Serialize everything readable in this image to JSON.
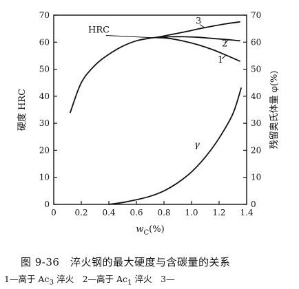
{
  "chart_data": {
    "type": "line",
    "xlabel": "w_C(%)",
    "xlabel_main": "w",
    "xlabel_sub": "C",
    "xlabel_unit": "(%)",
    "ylabel": "硬度 HRC",
    "y2label": "残留奥氏体量 φ(%)",
    "xlim": [
      0,
      1.4
    ],
    "ylim": [
      0,
      70
    ],
    "y2lim": [
      0,
      70
    ],
    "xticks": [
      "0",
      "0.2",
      "0.4",
      "0.6",
      "0.8",
      "1.0",
      "1.2",
      "1.4"
    ],
    "xtick_values": [
      0,
      0.2,
      0.4,
      0.6,
      0.8,
      1.0,
      1.2,
      1.4
    ],
    "yticks": [
      "0",
      "10",
      "20",
      "30",
      "40",
      "50",
      "60",
      "70"
    ],
    "ytick_values": [
      0,
      10,
      20,
      30,
      40,
      50,
      60,
      70
    ],
    "y2ticks": [
      "0",
      "10",
      "20",
      "30",
      "40",
      "50",
      "60",
      "70"
    ],
    "grid": false,
    "series": [
      {
        "name": "HRC",
        "axis": "left",
        "x": [
          0.12,
          0.2,
          0.3,
          0.4,
          0.5,
          0.6,
          0.7,
          0.75
        ],
        "y": [
          34,
          45,
          51.5,
          55.5,
          58.5,
          60.5,
          61.5,
          61.8
        ]
      },
      {
        "name": "1",
        "axis": "left",
        "x": [
          0.75,
          0.85,
          0.95,
          1.05,
          1.15,
          1.25,
          1.35
        ],
        "y": [
          61.8,
          61.3,
          60.3,
          59.0,
          57.3,
          55.2,
          53.0
        ]
      },
      {
        "name": "2",
        "axis": "left",
        "x": [
          0.75,
          0.85,
          0.95,
          1.05,
          1.15,
          1.25,
          1.35
        ],
        "y": [
          61.8,
          62.0,
          62.0,
          61.8,
          61.4,
          61.0,
          60.5
        ]
      },
      {
        "name": "3",
        "axis": "left",
        "x": [
          0.75,
          0.85,
          0.95,
          1.05,
          1.15,
          1.25,
          1.35
        ],
        "y": [
          61.8,
          62.8,
          63.8,
          64.9,
          65.9,
          66.8,
          67.5
        ]
      },
      {
        "name": "γ",
        "axis": "right",
        "x": [
          0.4,
          0.5,
          0.6,
          0.7,
          0.8,
          0.9,
          1.0,
          1.1,
          1.2,
          1.3,
          1.36
        ],
        "y": [
          0,
          0.7,
          1.7,
          3.0,
          5.0,
          8.0,
          12.0,
          17.5,
          24.5,
          33.5,
          43
        ]
      }
    ],
    "curve_labels": {
      "HRC": "HRC",
      "c1": "1",
      "c2": "2",
      "c3": "3",
      "gamma": "γ"
    }
  },
  "caption": {
    "title": "图 9-36　淬火钢的最大硬度与含碳量的关系",
    "legend_parts": [
      "1—高于 Ac",
      "3",
      " 淬火　2—高于 Ac",
      "1",
      " 淬火　3—"
    ]
  }
}
